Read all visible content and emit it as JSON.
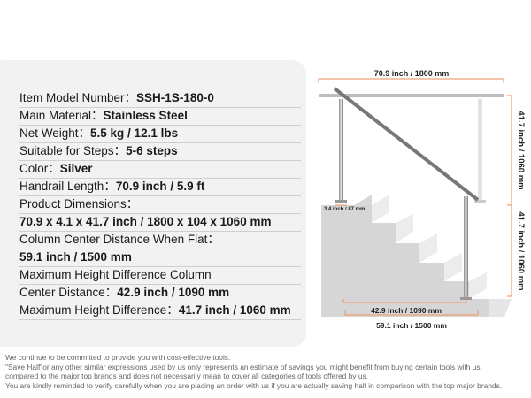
{
  "specs": [
    {
      "label": "Item Model Number：",
      "value": "SSH-1S-180-0"
    },
    {
      "label": "Main Material：",
      "value": "Stainless Steel"
    },
    {
      "label": "Net Weight：",
      "value": "5.5 kg / 12.1 lbs"
    },
    {
      "label": "Suitable for Steps：",
      "value": "5-6 steps"
    },
    {
      "label": "Color：",
      "value": "Silver"
    },
    {
      "label": "Handrail Length：",
      "value": "70.9 inch / 5.9 ft"
    },
    {
      "label": "Product Dimensions：",
      "value": ""
    },
    {
      "label": "",
      "value": "70.9 x 4.1 x 41.7 inch / 1800 x 104 x 1060 mm"
    },
    {
      "label": "Column Center Distance When Flat：",
      "value": ""
    },
    {
      "label": "",
      "value": "59.1 inch / 1500 mm"
    },
    {
      "label": "Maximum Height Difference Column",
      "value": ""
    },
    {
      "label": "Center Distance：",
      "value": "42.9 inch / 1090 mm"
    },
    {
      "label": "Maximum Height Difference：",
      "value": "41.7 inch / 1060 mm"
    }
  ],
  "diagram": {
    "width_label": "70.9 inch / 1800 mm",
    "height_upper_label": "41.7 inch / 1060 mm",
    "height_lower_label": "41.7 inch / 1060 mm",
    "base_label": "3.4 inch / 87 mm",
    "column_distance_label": "42.9 inch / 1090 mm",
    "flat_distance_label": "59.1 inch / 1500 mm",
    "accent_color": "#f0a070"
  },
  "footer": [
    "We continue to be committed to provide you with cost-effective tools.",
    "\"Save Half\"or any other similar expressions used by us only represents an estimate of savings you might benefit from buying certain tools with us",
    "compared to the major top brands and does not necessarily mean to cover all categories of tools offered by us.",
    "You are kindly reminded to verify carefully when you are placing an order with us if you are actually saving half in comparison with the top major brands."
  ]
}
